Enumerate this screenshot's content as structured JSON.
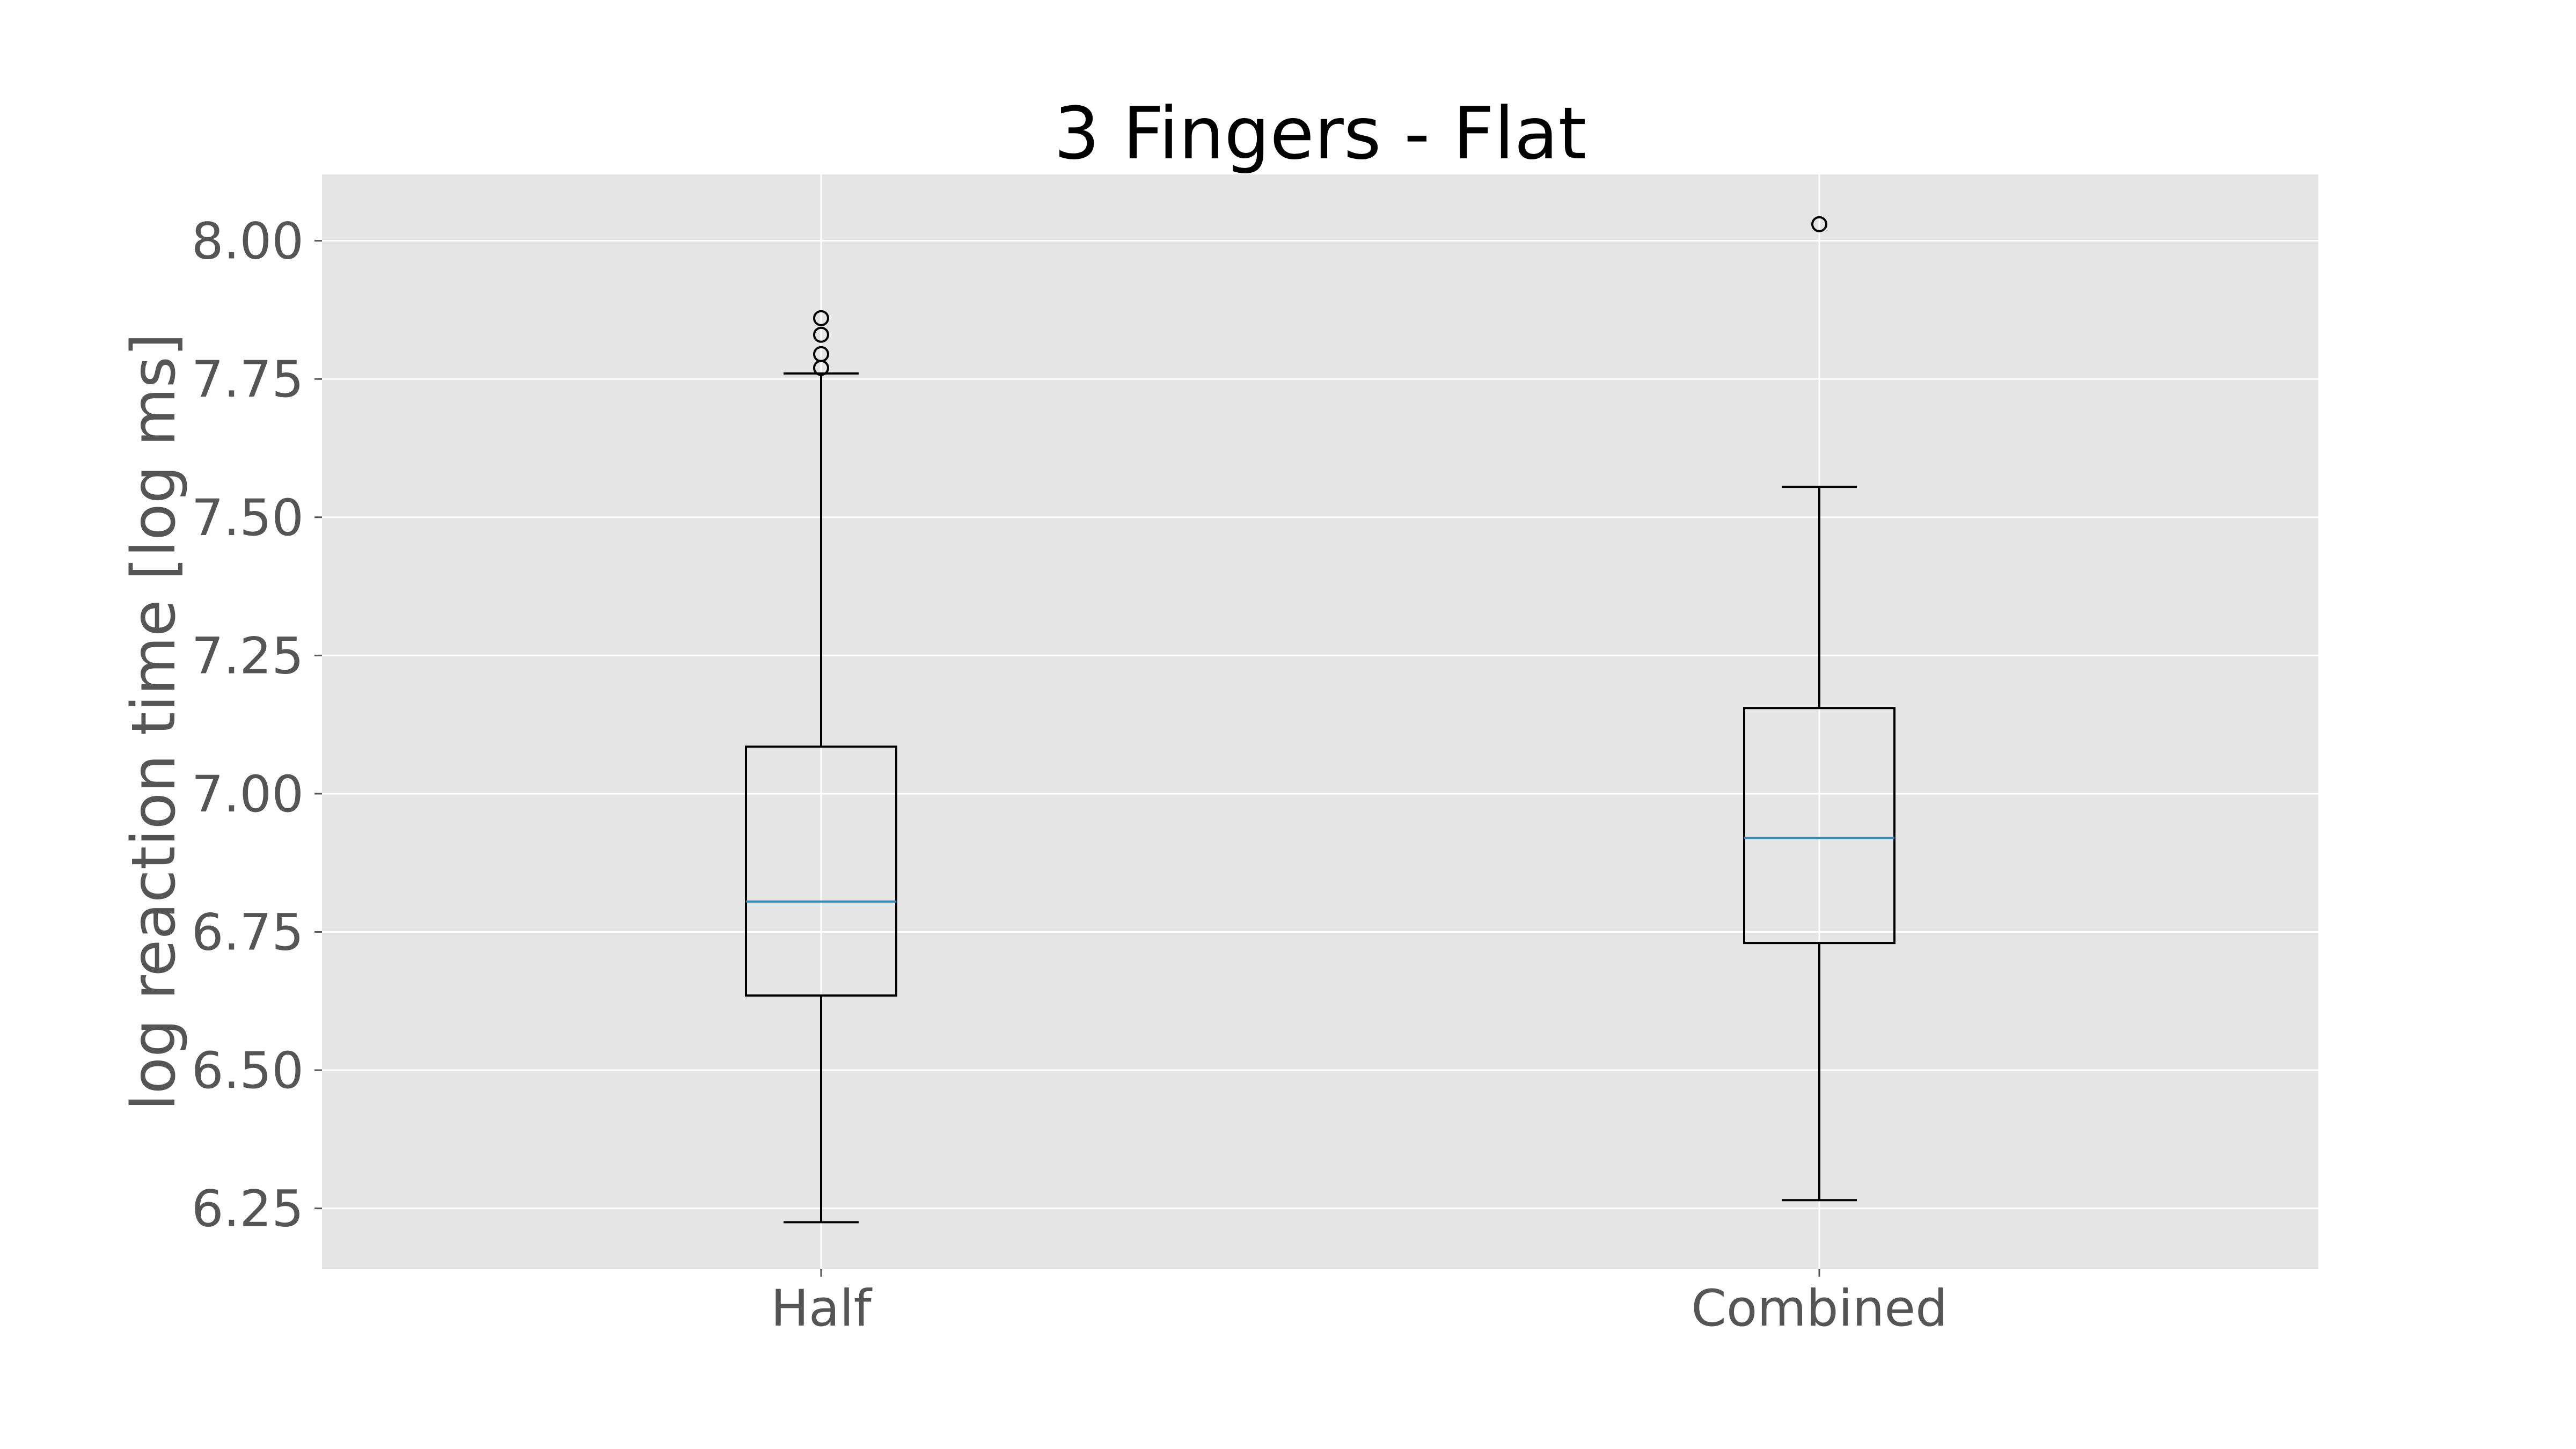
{
  "chart_data": {
    "type": "boxplot",
    "title": "3 Fingers - Flat",
    "xlabel": "",
    "ylabel": "log reaction time [log ms]",
    "ylim": [
      6.14,
      8.12
    ],
    "yticks": [
      "6.25",
      "6.50",
      "6.75",
      "7.00",
      "7.25",
      "7.50",
      "7.75",
      "8.00"
    ],
    "grid": true,
    "categories": [
      "Half",
      "Combined"
    ],
    "boxes": [
      {
        "label": "Half",
        "whisker_low": 6.225,
        "q1": 6.635,
        "median": 6.805,
        "q3": 7.085,
        "whisker_high": 7.76,
        "outliers": [
          7.77,
          7.795,
          7.83,
          7.86
        ]
      },
      {
        "label": "Combined",
        "whisker_low": 6.265,
        "q1": 6.73,
        "median": 6.92,
        "q3": 7.155,
        "whisker_high": 7.555,
        "outliers": [
          8.03
        ]
      }
    ],
    "colors": {
      "background": "#e5e5e5",
      "grid": "#ffffff",
      "box": "#000000",
      "median": "#348abd"
    }
  }
}
